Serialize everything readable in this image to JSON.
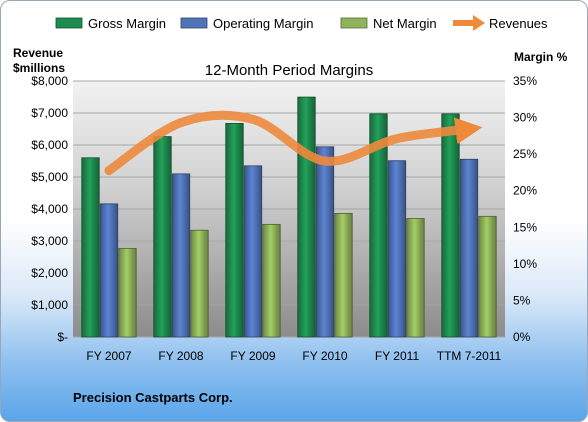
{
  "chart_data": {
    "type": "bar",
    "title": "12-Month Period Margins",
    "categories": [
      "FY 2007",
      "FY 2008",
      "FY 2009",
      "FY 2010",
      "FY 2011",
      "TTM 7-2011"
    ],
    "series": [
      {
        "name": "Gross Margin",
        "type": "bar",
        "axis": "right",
        "color": "#1e8c4e",
        "values": [
          24.5,
          27.4,
          29.2,
          32.8,
          30.5,
          30.5
        ]
      },
      {
        "name": "Operating Margin",
        "type": "bar",
        "axis": "right",
        "color": "#5074b8",
        "values": [
          18.2,
          22.3,
          23.4,
          26.0,
          24.1,
          24.3
        ]
      },
      {
        "name": "Net Margin",
        "type": "bar",
        "axis": "right",
        "color": "#8fb25a",
        "values": [
          12.1,
          14.6,
          15.4,
          16.9,
          16.2,
          16.5
        ]
      },
      {
        "name": "Revenues",
        "type": "line",
        "axis": "left",
        "color": "#ed8a3c",
        "values": [
          5200,
          6700,
          6800,
          5500,
          6200,
          6500
        ]
      }
    ],
    "y_left": {
      "title_line1": "Revenue",
      "title_line2": "$millions",
      "ylim": [
        0,
        8000
      ],
      "ticks": [
        "$-",
        "$1,000",
        "$2,000",
        "$3,000",
        "$4,000",
        "$5,000",
        "$6,000",
        "$7,000",
        "$8,000"
      ]
    },
    "y_right": {
      "title": "Margin %",
      "ylim": [
        0,
        35
      ],
      "ticks": [
        "0%",
        "5%",
        "10%",
        "15%",
        "20%",
        "25%",
        "30%",
        "35%"
      ]
    },
    "grid": true,
    "legend_position": "top",
    "company": "Precision Castparts  Corp."
  }
}
